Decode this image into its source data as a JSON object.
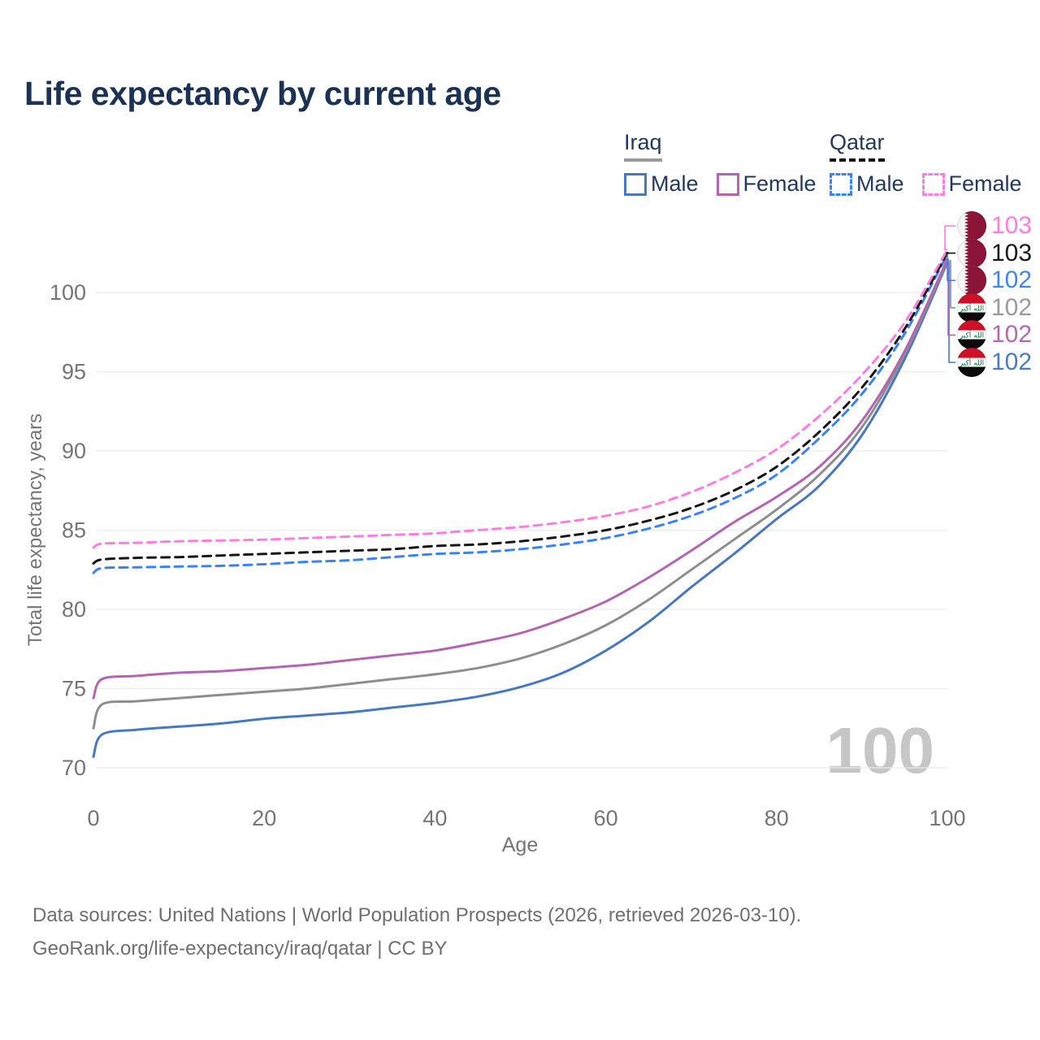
{
  "title": "Life expectancy by current age",
  "legend": {
    "groups": [
      {
        "country": "Iraq",
        "style": "solid",
        "items": [
          {
            "label": "Male"
          },
          {
            "label": "Female"
          }
        ]
      },
      {
        "country": "Qatar",
        "style": "dashed",
        "items": [
          {
            "label": "Male"
          },
          {
            "label": "Female"
          }
        ]
      }
    ]
  },
  "age_counter": "100",
  "footer": {
    "line1": "Data sources: United Nations | World Population Prospects (2026, retrieved 2026-03-10).",
    "line2": "GeoRank.org/life-expectancy/iraq/qatar | CC BY"
  },
  "chart_data": {
    "type": "line",
    "title": "Life expectancy by current age",
    "xlabel": "Age",
    "ylabel": "Total life expectancy, years",
    "x_ticks": [
      0,
      20,
      40,
      60,
      80,
      100
    ],
    "y_ticks": [
      70,
      75,
      80,
      85,
      90,
      95,
      100
    ],
    "xlim": [
      0,
      100
    ],
    "ylim": [
      69.5,
      103.5
    ],
    "grid": "horizontal-only",
    "legend_position": "top-right",
    "ages": [
      0,
      1,
      5,
      10,
      15,
      20,
      25,
      30,
      35,
      40,
      45,
      50,
      55,
      60,
      65,
      70,
      75,
      80,
      85,
      90,
      95,
      100
    ],
    "series": [
      {
        "name": "Iraq Male",
        "country": "iraq",
        "sex": "male",
        "color": "#4878bf",
        "dashed": false,
        "end_label": "102",
        "label_color": "#4a7cc7",
        "row": 5,
        "values": [
          70.7,
          72.1,
          72.4,
          72.6,
          72.8,
          73.1,
          73.3,
          73.5,
          73.8,
          74.1,
          74.5,
          75.1,
          76.0,
          77.4,
          79.2,
          81.4,
          83.5,
          85.7,
          87.8,
          91.0,
          95.8,
          101.9
        ]
      },
      {
        "name": "Iraq",
        "country": "iraq",
        "sex": "both",
        "color": "#8e8e8e",
        "dashed": false,
        "end_label": "102",
        "label_color": "#9a9a9a",
        "row": 3,
        "values": [
          72.5,
          74.0,
          74.2,
          74.4,
          74.6,
          74.8,
          75.0,
          75.3,
          75.6,
          75.9,
          76.3,
          76.9,
          77.8,
          79.0,
          80.6,
          82.5,
          84.4,
          86.3,
          88.5,
          91.5,
          96.1,
          102.0
        ]
      },
      {
        "name": "Iraq Female",
        "country": "iraq",
        "sex": "female",
        "color": "#b465b2",
        "dashed": false,
        "end_label": "102",
        "label_color": "#b369b0",
        "row": 4,
        "values": [
          74.4,
          75.6,
          75.8,
          76.0,
          76.1,
          76.3,
          76.5,
          76.8,
          77.1,
          77.4,
          77.9,
          78.5,
          79.4,
          80.5,
          82.0,
          83.7,
          85.5,
          87.1,
          89.0,
          91.9,
          96.3,
          102.1
        ]
      },
      {
        "name": "Qatar Male",
        "country": "qatar",
        "sex": "male",
        "color": "#3b82f6",
        "dashed": true,
        "end_label": "102",
        "label_color": "#3f86f0",
        "row": 2,
        "values": [
          82.3,
          82.6,
          82.65,
          82.7,
          82.75,
          82.85,
          83.0,
          83.1,
          83.3,
          83.5,
          83.6,
          83.8,
          84.1,
          84.5,
          85.1,
          85.9,
          87.0,
          88.5,
          90.8,
          93.6,
          97.4,
          102.4
        ]
      },
      {
        "name": "Qatar",
        "country": "qatar",
        "sex": "both",
        "color": "#161616",
        "dashed": true,
        "end_label": "103",
        "label_color": "#1a1a1a",
        "row": 1,
        "values": [
          82.9,
          83.15,
          83.25,
          83.3,
          83.4,
          83.5,
          83.6,
          83.7,
          83.8,
          84.0,
          84.1,
          84.3,
          84.6,
          85.0,
          85.6,
          86.4,
          87.5,
          89.0,
          91.2,
          94.0,
          97.7,
          102.5
        ]
      },
      {
        "name": "Qatar Female",
        "country": "qatar",
        "sex": "female",
        "color": "#ff7ce1",
        "dashed": true,
        "end_label": "103",
        "label_color": "#ff7ce1",
        "row": 0,
        "values": [
          83.9,
          84.15,
          84.2,
          84.3,
          84.35,
          84.4,
          84.5,
          84.6,
          84.7,
          84.8,
          85.0,
          85.2,
          85.5,
          85.9,
          86.5,
          87.4,
          88.6,
          90.1,
          92.2,
          94.8,
          98.1,
          102.7
        ]
      }
    ]
  }
}
